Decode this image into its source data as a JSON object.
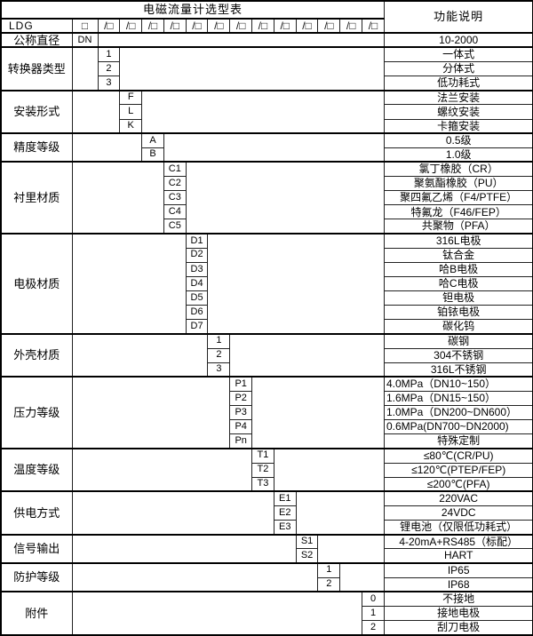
{
  "title": "电磁流量计选型表",
  "function_header": "功能说明",
  "colors": {
    "border": "#000000",
    "background": "#ffffff",
    "text": "#000000"
  },
  "model_row": {
    "label": "LDG",
    "first_box": "□",
    "slash_box": "/□",
    "slash_box_count": 13
  },
  "sections": [
    {
      "label": "公称直径",
      "col": 1,
      "rows": [
        {
          "code": "DN",
          "desc": "10-2000"
        }
      ]
    },
    {
      "label": "转换器类型",
      "col": 2,
      "rows": [
        {
          "code": "1",
          "desc": "一体式"
        },
        {
          "code": "2",
          "desc": "分体式"
        },
        {
          "code": "3",
          "desc": "低功耗式"
        }
      ]
    },
    {
      "label": "安装形式",
      "col": 3,
      "rows": [
        {
          "code": "F",
          "desc": "法兰安装"
        },
        {
          "code": "L",
          "desc": "螺纹安装"
        },
        {
          "code": "K",
          "desc": "卡箍安装"
        }
      ]
    },
    {
      "label": "精度等级",
      "col": 4,
      "rows": [
        {
          "code": "A",
          "desc": "0.5级"
        },
        {
          "code": "B",
          "desc": "1.0级"
        }
      ]
    },
    {
      "label": "衬里材质",
      "col": 5,
      "rows": [
        {
          "code": "C1",
          "desc": "氯丁橡胶（CR）"
        },
        {
          "code": "C2",
          "desc": "聚氨酯橡胶（PU）"
        },
        {
          "code": "C3",
          "desc": "聚四氟乙烯（F4/PTFE）"
        },
        {
          "code": "C4",
          "desc": "特氟龙（F46/FEP）"
        },
        {
          "code": "C5",
          "desc": "共聚物（PFA）"
        }
      ]
    },
    {
      "label": "电极材质",
      "col": 6,
      "rows": [
        {
          "code": "D1",
          "desc": "316L电极"
        },
        {
          "code": "D2",
          "desc": "钛合金"
        },
        {
          "code": "D3",
          "desc": "哈B电极"
        },
        {
          "code": "D4",
          "desc": "哈C电极"
        },
        {
          "code": "D5",
          "desc": "钽电极"
        },
        {
          "code": "D6",
          "desc": "铂铱电极"
        },
        {
          "code": "D7",
          "desc": "碳化钨"
        }
      ]
    },
    {
      "label": "外壳材质",
      "col": 7,
      "rows": [
        {
          "code": "1",
          "desc": "碳钢"
        },
        {
          "code": "2",
          "desc": "304不锈钢"
        },
        {
          "code": "3",
          "desc": "316L不锈钢"
        }
      ]
    },
    {
      "label": "压力等级",
      "col": 8,
      "rows": [
        {
          "code": "P1",
          "desc": "4.0MPa（DN10~150）",
          "align": "left"
        },
        {
          "code": "P2",
          "desc": "1.6MPa（DN15~150）",
          "align": "left"
        },
        {
          "code": "P3",
          "desc": "1.0MPa（DN200~DN600）",
          "align": "left"
        },
        {
          "code": "P4",
          "desc": "0.6MPa(DN700~DN2000)",
          "align": "left"
        },
        {
          "code": "Pn",
          "desc": "特殊定制"
        }
      ]
    },
    {
      "label": "温度等级",
      "col": 9,
      "rows": [
        {
          "code": "T1",
          "desc": "≤80℃(CR/PU)"
        },
        {
          "code": "T2",
          "desc": "≤120℃(PTEP/FEP)"
        },
        {
          "code": "T3",
          "desc": "≤200℃(PFA)"
        }
      ]
    },
    {
      "label": "供电方式",
      "col": 10,
      "rows": [
        {
          "code": "E1",
          "desc": "220VAC"
        },
        {
          "code": "E2",
          "desc": "24VDC"
        },
        {
          "code": "E3",
          "desc": "锂电池（仅限低功耗式）"
        }
      ]
    },
    {
      "label": "信号输出",
      "col": 11,
      "rows": [
        {
          "code": "S1",
          "desc": "4-20mA+RS485（标配）"
        },
        {
          "code": "S2",
          "desc": "HART"
        }
      ]
    },
    {
      "label": "防护等级",
      "col": 12,
      "rows": [
        {
          "code": "1",
          "desc": "IP65"
        },
        {
          "code": "2",
          "desc": "IP68"
        }
      ]
    },
    {
      "label": "附件",
      "col": 14,
      "rows": [
        {
          "code": "0",
          "desc": "不接地"
        },
        {
          "code": "1",
          "desc": "接地电极"
        },
        {
          "code": "2",
          "desc": "刮刀电极"
        }
      ]
    }
  ]
}
